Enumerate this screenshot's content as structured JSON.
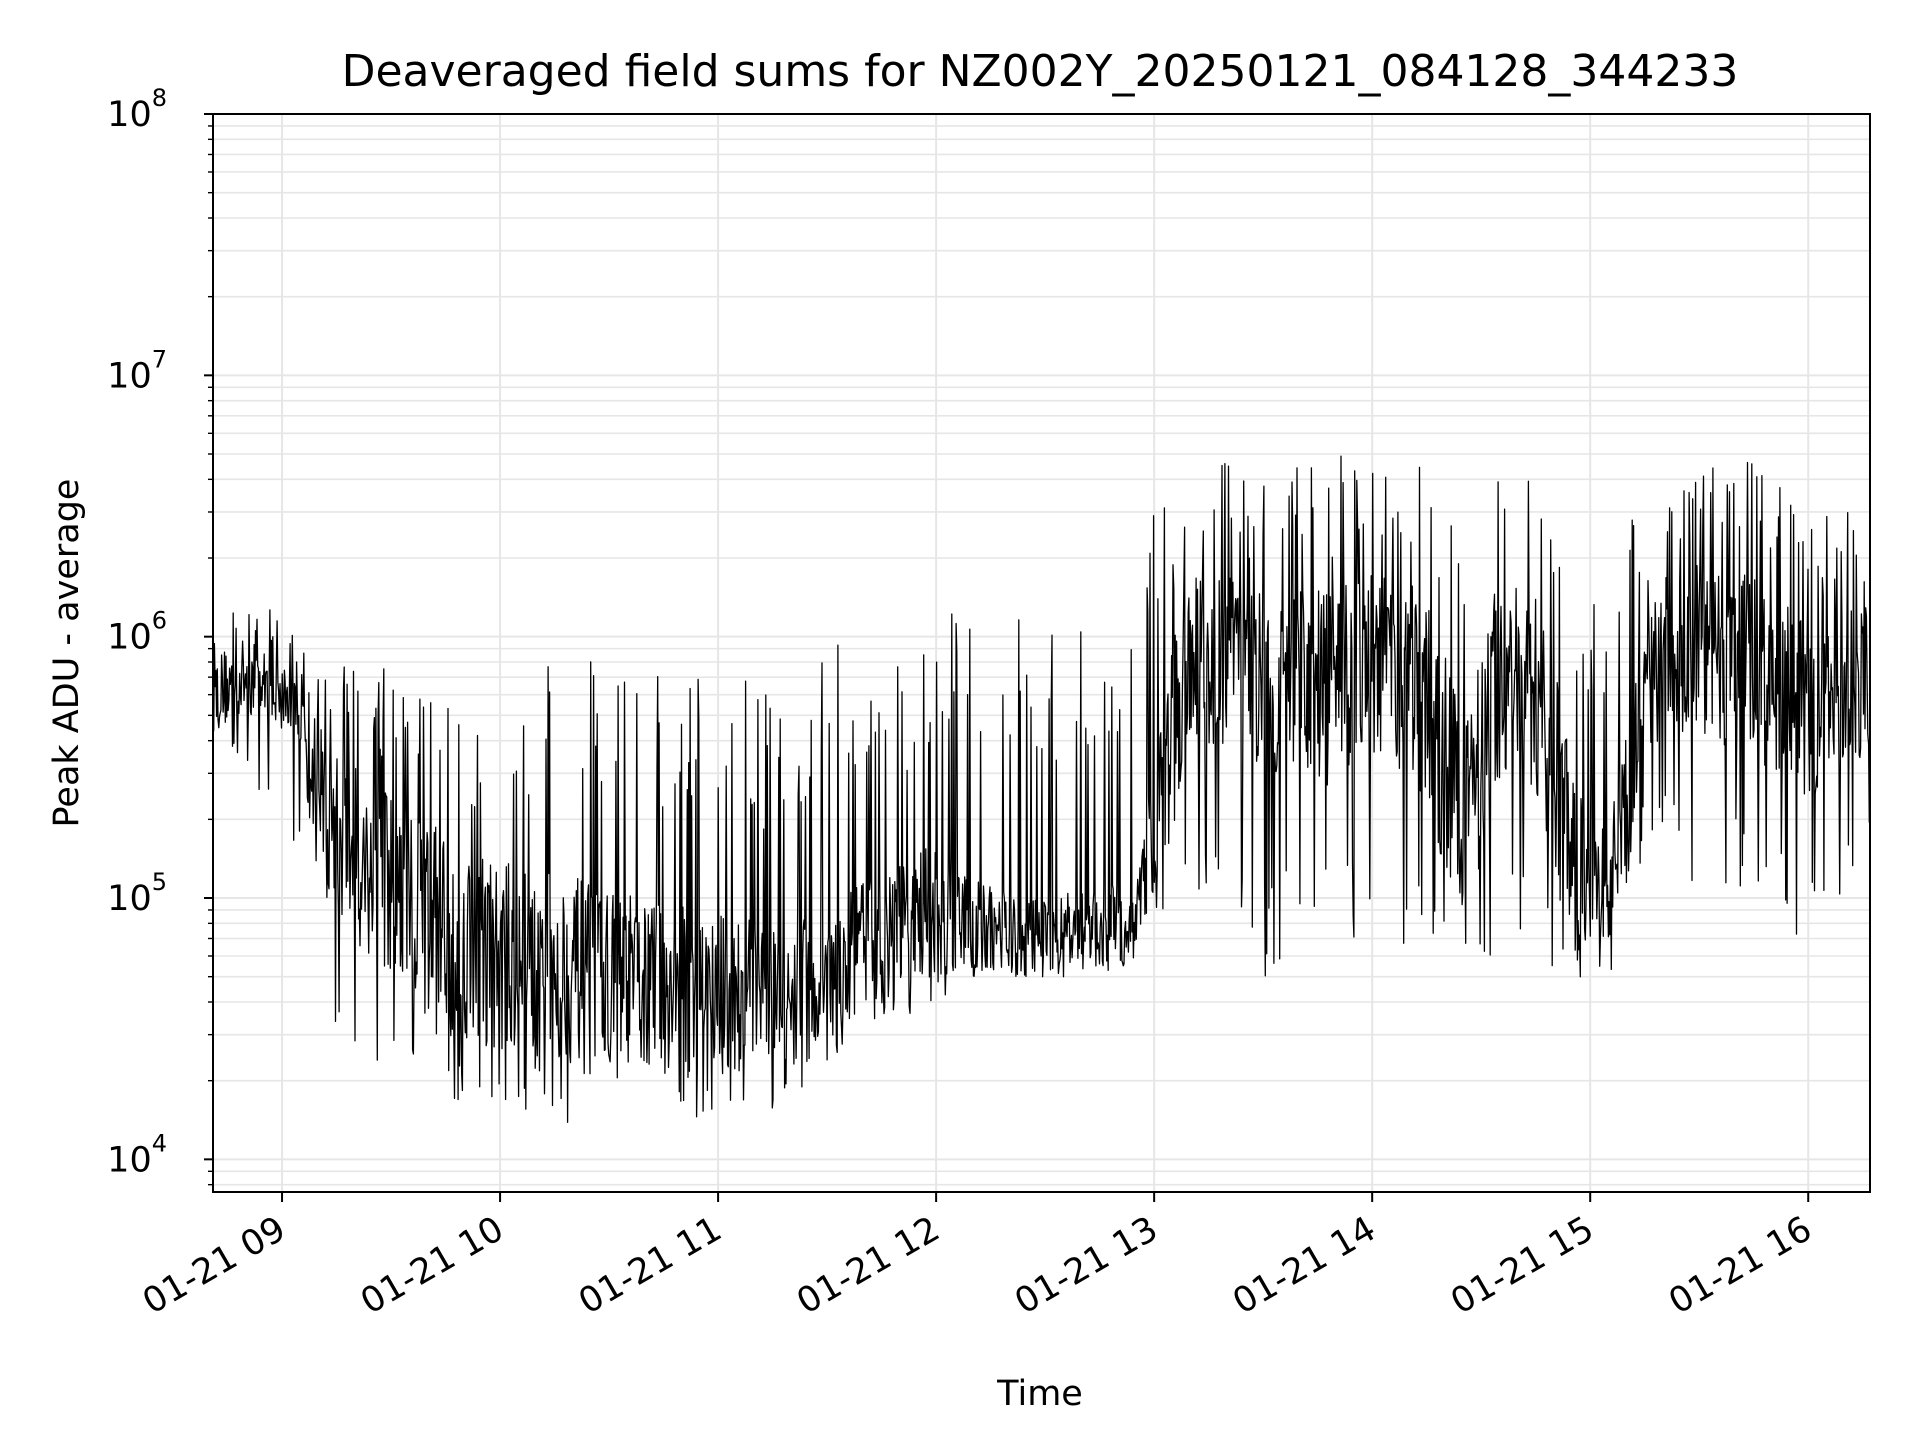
{
  "chart_data": {
    "type": "line",
    "title": "Deaveraged field sums for NZ002Y_20250121_084128_344233",
    "xlabel": "Time",
    "ylabel": "Peak ADU - average",
    "yscale": "log",
    "ylim": [
      7500,
      100000000
    ],
    "xlim": [
      "01-21 08:41",
      "01-21 16:17"
    ],
    "x_ticks": [
      "01-21 09",
      "01-21 10",
      "01-21 11",
      "01-21 12",
      "01-21 13",
      "01-21 14",
      "01-21 15",
      "01-21 16"
    ],
    "y_ticks": [
      {
        "value": 10000,
        "base": "10",
        "exp": "4"
      },
      {
        "value": 100000,
        "base": "10",
        "exp": "5"
      },
      {
        "value": 1000000,
        "base": "10",
        "exp": "6"
      },
      {
        "value": 10000000,
        "base": "10",
        "exp": "7"
      },
      {
        "value": 100000000,
        "base": "10",
        "exp": "8"
      }
    ],
    "grid": true,
    "line_color": "#000000",
    "grid_color": "#e6e6e6",
    "series": [
      {
        "x": [
          "01-21 08:41",
          "01-21 08:45",
          "01-21 08:50",
          "01-21 09:00",
          "01-21 09:05",
          "01-21 09:10",
          "01-21 09:20",
          "01-21 09:30",
          "01-21 09:40",
          "01-21 09:50",
          "01-21 10:00",
          "01-21 10:15",
          "01-21 10:30",
          "01-21 10:45",
          "01-21 11:00",
          "01-21 11:15",
          "01-21 11:30",
          "01-21 11:45",
          "01-21 12:00",
          "01-21 12:15",
          "01-21 12:30",
          "01-21 12:45",
          "01-21 12:55",
          "01-21 13:00",
          "01-21 13:10",
          "01-21 13:20",
          "01-21 13:30",
          "01-21 13:45",
          "01-21 14:00",
          "01-21 14:15",
          "01-21 14:25",
          "01-21 14:35",
          "01-21 14:45",
          "01-21 14:55",
          "01-21 15:05",
          "01-21 15:15",
          "01-21 15:30",
          "01-21 15:45",
          "01-21 16:00",
          "01-21 16:17"
        ],
        "center": [
          600000,
          650000,
          700000,
          600000,
          500000,
          200000,
          150000,
          100000,
          80000,
          70000,
          60000,
          55000,
          50000,
          45000,
          45000,
          40000,
          45000,
          70000,
          90000,
          75000,
          70000,
          75000,
          80000,
          200000,
          900000,
          800000,
          700000,
          600000,
          800000,
          600000,
          200000,
          700000,
          600000,
          150000,
          100000,
          800000,
          900000,
          800000,
          500000,
          700000
        ],
        "low": [
          300000,
          350000,
          300000,
          200000,
          150000,
          50000,
          18000,
          16000,
          14000,
          14000,
          15000,
          13000,
          15000,
          13000,
          15000,
          15000,
          16000,
          25000,
          40000,
          50000,
          50000,
          50000,
          55000,
          80000,
          60000,
          55000,
          50000,
          60000,
          70000,
          60000,
          55000,
          60000,
          55000,
          50000,
          48000,
          150000,
          100000,
          100000,
          60000,
          150000
        ],
        "high": [
          1300000,
          1400000,
          1500000,
          1200000,
          900000,
          800000,
          900000,
          800000,
          700000,
          500000,
          400000,
          900000,
          800000,
          700000,
          800000,
          600000,
          1000000,
          700000,
          1200000,
          1300000,
          1200000,
          1000000,
          1300000,
          3500000,
          4500000,
          5000000,
          4000000,
          5000000,
          5000000,
          4500000,
          2500000,
          5000000,
          4000000,
          1500000,
          2000000,
          4000000,
          5000000,
          5000000,
          3000000,
          3000000
        ]
      }
    ]
  }
}
